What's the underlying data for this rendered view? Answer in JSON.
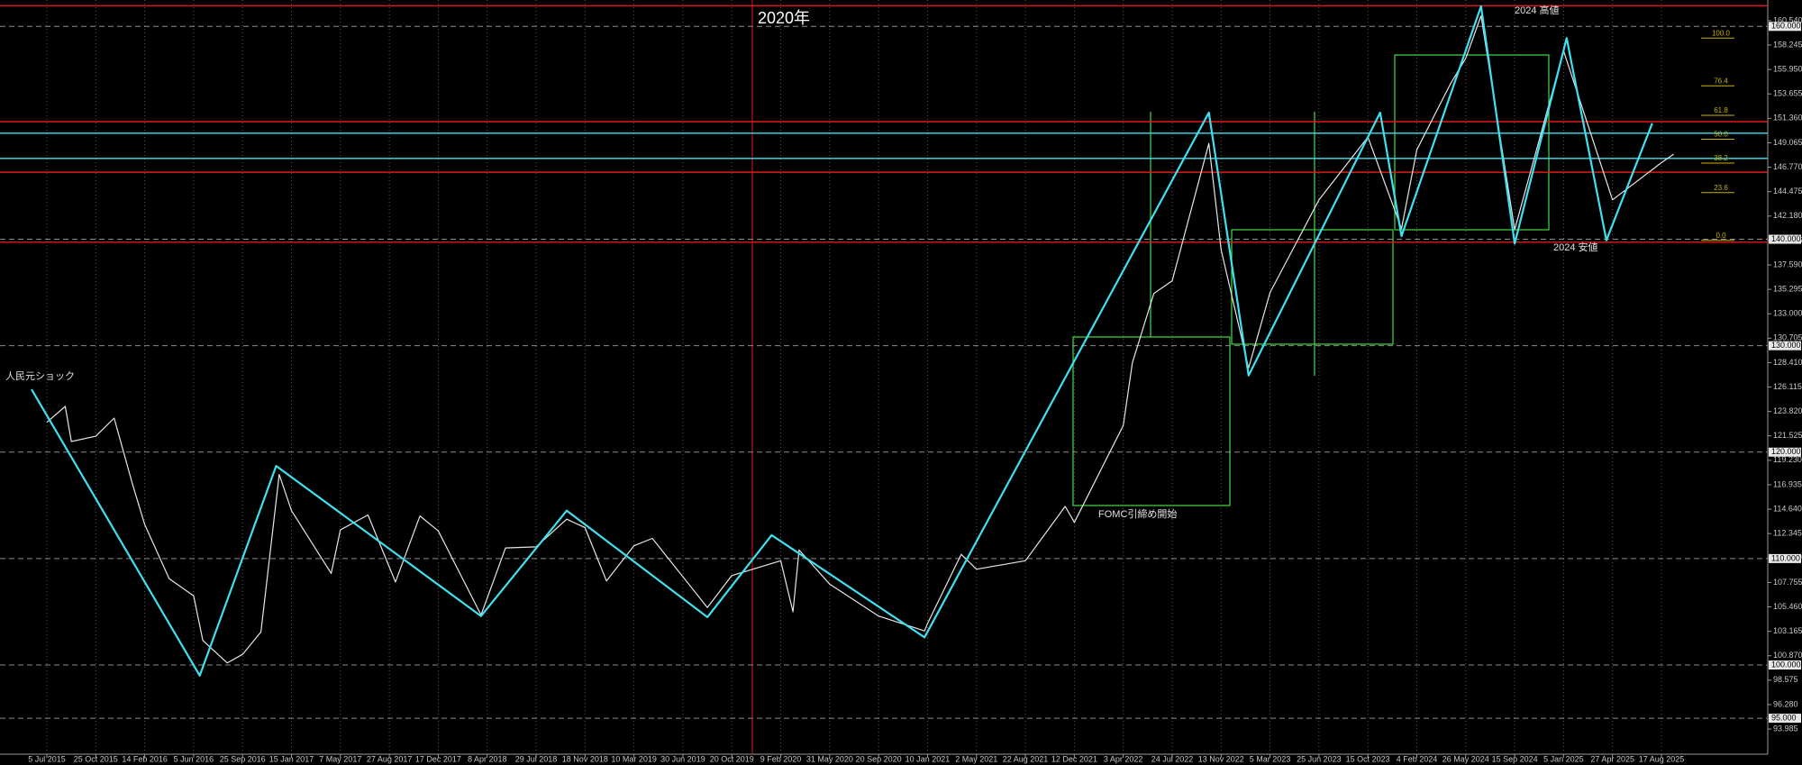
{
  "chart_data": {
    "type": "line",
    "title": "2020年",
    "annotations": [
      "人民元ショック",
      "FOMC引締め開始",
      "2024 高値",
      "2024 安値"
    ],
    "xticks": [
      "5 Jul 2015",
      "25 Oct 2015",
      "14 Feb 2016",
      "5 Jun 2016",
      "25 Sep 2016",
      "15 Jan 2017",
      "7 May 2017",
      "27 Aug 2017",
      "17 Dec 2017",
      "8 Apr 2018",
      "29 Jul 2018",
      "18 Nov 2018",
      "10 Mar 2019",
      "30 Jun 2019",
      "20 Oct 2019",
      "9 Feb 2020",
      "31 May 2020",
      "20 Sep 2020",
      "10 Jan 2021",
      "2 May 2021",
      "22 Aug 2021",
      "12 Dec 2021",
      "3 Apr 2022",
      "24 Jul 2022",
      "13 Nov 2022",
      "5 Mar 2023",
      "25 Jun 2023",
      "15 Oct 2023",
      "4 Feb 2024",
      "26 May 2024",
      "15 Sep 2024",
      "5 Jan 2025",
      "27 Apr 2025",
      "17 Aug 2025"
    ],
    "ylim": [
      91.62,
      162.48
    ],
    "yticks": [
      {
        "value": 160.54,
        "label": "160.540"
      },
      {
        "value": 158.245,
        "label": "158.245"
      },
      {
        "value": 155.95,
        "label": "155.950"
      },
      {
        "value": 153.655,
        "label": "153.655"
      },
      {
        "value": 151.36,
        "label": "151.360"
      },
      {
        "value": 149.065,
        "label": "149.065"
      },
      {
        "value": 146.77,
        "label": "146.770"
      },
      {
        "value": 144.475,
        "label": "144.475"
      },
      {
        "value": 142.18,
        "label": "142.180"
      },
      {
        "value": 139.885,
        "label": "139.885"
      },
      {
        "value": 137.59,
        "label": "137.590"
      },
      {
        "value": 135.295,
        "label": "135.295"
      },
      {
        "value": 133,
        "label": "133.000"
      },
      {
        "value": 130.705,
        "label": "130.705"
      },
      {
        "value": 128.41,
        "label": "128.410"
      },
      {
        "value": 126.115,
        "label": "126.115"
      },
      {
        "value": 123.82,
        "label": "123.820"
      },
      {
        "value": 121.525,
        "label": "121.525"
      },
      {
        "value": 119.23,
        "label": "119.230"
      },
      {
        "value": 116.935,
        "label": "116.935"
      },
      {
        "value": 114.64,
        "label": "114.640"
      },
      {
        "value": 112.345,
        "label": "112.345"
      },
      {
        "value": 110.05,
        "label": "110.050"
      },
      {
        "value": 107.755,
        "label": "107.755"
      },
      {
        "value": 105.46,
        "label": "105.460"
      },
      {
        "value": 103.165,
        "label": "103.165"
      },
      {
        "value": 100.87,
        "label": "100.870"
      },
      {
        "value": 98.575,
        "label": "98.575"
      },
      {
        "value": 96.28,
        "label": "96.280"
      },
      {
        "value": 93.985,
        "label": "93.985"
      }
    ],
    "grid": true,
    "series": [
      {
        "color": "#e6e6e6",
        "x": [
          "5 Jul 2015",
          "16 Aug 2015",
          "30 Aug 2015",
          "25 Oct 2015",
          "6 Dec 2015",
          "17 Jan 2016",
          "14 Feb 2016",
          "10 Apr 2016",
          "5 Jun 2016",
          "26 Jun 2016",
          "21 Aug 2016",
          "25 Sep 2016",
          "6 Nov 2016",
          "18 Dec 2016",
          "15 Jan 2017",
          "16 Apr 2017",
          "7 May 2017",
          "9 Jul 2017",
          "10 Sep 2017",
          "5 Nov 2017",
          "17 Dec 2017",
          "25 Mar 2018",
          "20 May 2018",
          "29 Jul 2018",
          "7 Oct 2018",
          "18 Nov 2018",
          "6 Jan 2019",
          "10 Mar 2019",
          "21 Apr 2019",
          "25 Aug 2019",
          "20 Oct 2019",
          "9 Feb 2020",
          "8 Mar 2020",
          "22 Mar 2020",
          "31 May 2020",
          "20 Sep 2020",
          "3 Jan 2021",
          "10 Jan 2021",
          "28 Mar 2021",
          "2 May 2021",
          "22 Aug 2021",
          "21 Nov 2021",
          "12 Dec 2021",
          "3 Apr 2022",
          "24 Apr 2022",
          "12 Jun 2022",
          "24 Jul 2022",
          "16 Oct 2022",
          "13 Nov 2022",
          "15 Jan 2023",
          "5 Mar 2023",
          "25 Jun 2023",
          "15 Oct 2023",
          "31 Dec 2023",
          "4 Feb 2024",
          "21 Apr 2024",
          "26 May 2024",
          "30 Jun 2024",
          "15 Sep 2024",
          "5 Jan 2025",
          "27 Apr 2025",
          "17 Aug 2025",
          "14 Sep 2025"
        ],
        "values": [
          122.8,
          124.3,
          121.0,
          121.5,
          123.2,
          117.0,
          113.2,
          108.1,
          106.5,
          102.3,
          100.2,
          101.0,
          103.1,
          117.9,
          114.5,
          108.6,
          112.7,
          114.1,
          107.8,
          114.0,
          112.6,
          104.7,
          111.0,
          111.1,
          113.7,
          112.9,
          107.9,
          111.2,
          111.9,
          105.4,
          108.4,
          109.8,
          105.0,
          110.8,
          107.6,
          104.6,
          103.2,
          103.9,
          110.4,
          109.0,
          109.8,
          114.9,
          113.4,
          122.5,
          128.4,
          134.9,
          136.1,
          149.0,
          139.0,
          127.9,
          135.0,
          143.7,
          149.6,
          141.0,
          148.4,
          154.6,
          157.0,
          161.0,
          140.9,
          157.7,
          143.7,
          147.2,
          148.0
        ]
      },
      {
        "color": "#3fe0ef",
        "x": [
          "31 May 2015",
          "19 Jun 2016",
          "11 Dec 2016",
          "25 Mar 2018",
          "7 Oct 2018",
          "25 Aug 2019",
          "19 Jan 2020",
          "3 Jan 2021",
          "16 Oct 2022",
          "15 Jan 2023",
          "12 Nov 2023",
          "31 Dec 2023",
          "30 Jun 2024",
          "15 Sep 2024",
          "12 Jan 2025",
          "13 Apr 2025",
          "27 Jul 2025"
        ],
        "values": [
          125.9,
          99.0,
          118.7,
          104.6,
          114.5,
          104.5,
          112.2,
          102.6,
          151.9,
          127.2,
          151.9,
          140.3,
          161.9,
          139.6,
          158.9,
          139.9,
          150.9
        ]
      }
    ],
    "levels": [
      {
        "value": 161.94,
        "color": "#e01818",
        "style": "solid"
      },
      {
        "value": 160,
        "label": "160.000",
        "color": "#8c8c8c",
        "style": "dashed"
      },
      {
        "value": 151.05,
        "color": "#e01818",
        "style": "solid"
      },
      {
        "value": 149.97,
        "color": "#3fe0ef",
        "style": "solid"
      },
      {
        "value": 147.6,
        "color": "#3fe0ef",
        "style": "solid"
      },
      {
        "value": 146.3,
        "color": "#e01818",
        "style": "solid"
      },
      {
        "value": 140,
        "label": "140.000",
        "color": "#8c8c8c",
        "style": "dashed"
      },
      {
        "value": 139.72,
        "color": "#e01818",
        "style": "solid"
      },
      {
        "value": 130,
        "label": "130.000",
        "color": "#8c8c8c",
        "style": "dashed"
      },
      {
        "value": 120,
        "label": "120.000",
        "color": "#8c8c8c",
        "style": "dashed"
      },
      {
        "value": 110,
        "label": "110.000",
        "color": "#8c8c8c",
        "style": "dashed"
      },
      {
        "value": 100,
        "label": "100.000",
        "color": "#8c8c8c",
        "style": "dashed"
      },
      {
        "value": 95,
        "label": "95.000",
        "color": "#8c8c8c",
        "style": "dashed"
      }
    ],
    "fib": {
      "color": "#c8b400",
      "levels": [
        {
          "value": 100,
          "label": "100.0"
        },
        {
          "value": 76.4,
          "label": "76.4"
        },
        {
          "value": 61.8,
          "label": "61.8"
        },
        {
          "value": 50,
          "label": "50.0"
        },
        {
          "value": 38.2,
          "label": "38.2"
        },
        {
          "value": 23.6,
          "label": "23.6"
        },
        {
          "value": 0,
          "label": "0.0"
        }
      ]
    }
  }
}
